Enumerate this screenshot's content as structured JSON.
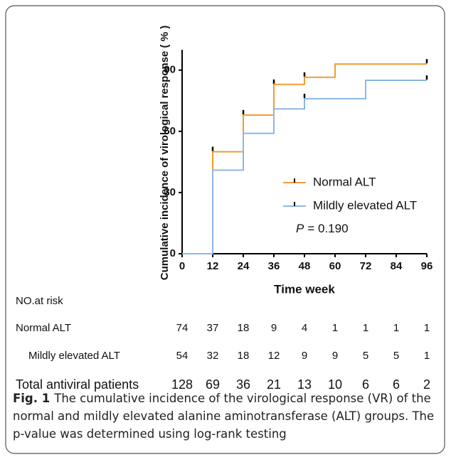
{
  "chart_data": {
    "type": "step",
    "y_label": "Cumulative incidence of virological response ( % )",
    "x_label": "Time week",
    "x": [
      0,
      12,
      24,
      36,
      48,
      60,
      72,
      84,
      96
    ],
    "series": [
      {
        "name": "Normal ALT",
        "color": "#f39a32",
        "values": [
          0,
          50,
          68,
          83,
          86.5,
          93,
          93,
          93,
          93
        ],
        "censored": [
          12,
          24,
          36,
          48,
          96
        ]
      },
      {
        "name": "Mildly elevated ALT",
        "color": "#8cb6e8",
        "values": [
          0,
          41,
          59,
          71,
          76,
          76,
          85,
          85,
          85
        ],
        "censored": [
          48,
          96
        ]
      }
    ],
    "xlim": [
      0,
      96
    ],
    "xticks": [
      0,
      12,
      24,
      36,
      48,
      60,
      72,
      84,
      96
    ],
    "ylim": [
      0,
      100
    ],
    "yticks": [
      0,
      30,
      60,
      90
    ],
    "annotation": {
      "symbol": "P",
      "text": "= 0.190"
    },
    "risk_table": {
      "title": "NO.at risk",
      "rows": [
        {
          "label": "Normal ALT",
          "values": [
            74,
            37,
            18,
            9,
            4,
            1,
            1,
            1,
            1
          ]
        },
        {
          "label": "Mildly elevated ALT",
          "values": [
            54,
            32,
            18,
            12,
            9,
            9,
            5,
            5,
            1
          ]
        },
        {
          "label": "Total antiviral patients",
          "values": [
            128,
            69,
            36,
            21,
            13,
            10,
            6,
            6,
            2
          ]
        }
      ]
    }
  },
  "caption": {
    "label": "Fig. 1",
    "text": "The cumulative incidence of the virological response (VR) of the normal and mildly elevated alanine aminotransferase (ALT) groups. The p-value was determined using log-rank testing"
  }
}
